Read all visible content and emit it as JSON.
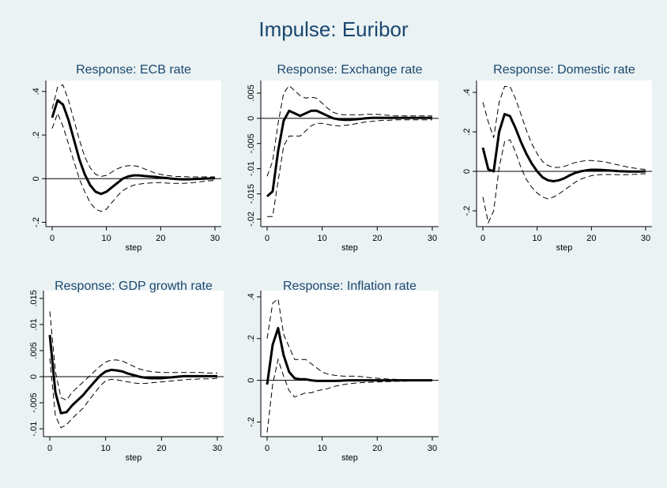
{
  "figure": {
    "title": "Impulse: Euribor"
  },
  "colors": {
    "background": "#eaf2f3",
    "plot_area": "#ffffff",
    "title": "#1a476f",
    "line": "#000000"
  },
  "chart_data": [
    {
      "type": "line",
      "title": "Response: ECB rate",
      "xlabel": "step",
      "xlim": [
        0,
        30
      ],
      "ylim": [
        -0.22,
        0.45
      ],
      "xticks": [
        "0",
        "10",
        "20",
        "30"
      ],
      "yticks": [
        "-.2",
        "0",
        ".2",
        ".4"
      ],
      "zero_line": true,
      "x": [
        0,
        1,
        2,
        3,
        4,
        5,
        6,
        7,
        8,
        9,
        10,
        11,
        12,
        13,
        14,
        15,
        16,
        17,
        18,
        19,
        20,
        21,
        22,
        23,
        24,
        25,
        26,
        27,
        28,
        29,
        30
      ],
      "series": [
        {
          "role": "irf",
          "style": "solid",
          "values": [
            0.28,
            0.36,
            0.34,
            0.27,
            0.18,
            0.09,
            0.02,
            -0.03,
            -0.06,
            -0.07,
            -0.06,
            -0.04,
            -0.02,
            0.0,
            0.01,
            0.015,
            0.015,
            0.012,
            0.01,
            0.008,
            0.005,
            0.003,
            0.0,
            -0.002,
            -0.003,
            -0.003,
            -0.002,
            -0.001,
            0.0,
            0.001,
            0.002
          ]
        },
        {
          "role": "upper",
          "style": "dashed",
          "values": [
            0.32,
            0.42,
            0.43,
            0.36,
            0.27,
            0.18,
            0.1,
            0.05,
            0.02,
            0.01,
            0.015,
            0.03,
            0.045,
            0.055,
            0.06,
            0.06,
            0.055,
            0.045,
            0.035,
            0.025,
            0.02,
            0.015,
            0.012,
            0.01,
            0.01,
            0.008,
            0.008,
            0.008,
            0.008,
            0.008,
            0.008
          ]
        },
        {
          "role": "lower",
          "style": "dashed",
          "values": [
            0.23,
            0.3,
            0.24,
            0.16,
            0.08,
            0.0,
            -0.06,
            -0.11,
            -0.14,
            -0.15,
            -0.14,
            -0.11,
            -0.08,
            -0.055,
            -0.04,
            -0.03,
            -0.025,
            -0.022,
            -0.02,
            -0.018,
            -0.018,
            -0.02,
            -0.022,
            -0.022,
            -0.022,
            -0.02,
            -0.018,
            -0.015,
            -0.012,
            -0.01,
            -0.008
          ]
        }
      ]
    },
    {
      "type": "line",
      "title": "Response: Exchange rate",
      "xlabel": "step",
      "xlim": [
        0,
        30
      ],
      "ylim": [
        -0.0215,
        0.0075
      ],
      "xticks": [
        "0",
        "10",
        "20",
        "30"
      ],
      "yticks": [
        "-.02",
        "-.015",
        "-.01",
        "-.005",
        "0",
        ".005"
      ],
      "zero_line": true,
      "x": [
        0,
        1,
        2,
        3,
        4,
        5,
        6,
        7,
        8,
        9,
        10,
        11,
        12,
        13,
        14,
        15,
        16,
        17,
        18,
        19,
        20,
        21,
        22,
        23,
        24,
        25,
        26,
        27,
        28,
        29,
        30
      ],
      "series": [
        {
          "role": "irf",
          "style": "solid",
          "values": [
            -0.0155,
            -0.0145,
            -0.0065,
            -0.0005,
            0.0015,
            0.001,
            0.0005,
            0.001,
            0.0015,
            0.0015,
            0.001,
            0.0005,
            0.0,
            -0.0002,
            -0.0003,
            -0.0003,
            -0.0002,
            -0.0001,
            0.0,
            0.0001,
            0.0001,
            0.0001,
            0.0001,
            0.0001,
            0.0001,
            0.0001,
            0.0001,
            0.0001,
            0.0001,
            0.0001,
            0.0001
          ]
        },
        {
          "role": "upper",
          "style": "dashed",
          "values": [
            -0.0115,
            -0.0085,
            -0.001,
            0.005,
            0.0065,
            0.0055,
            0.0045,
            0.004,
            0.0042,
            0.004,
            0.003,
            0.002,
            0.0012,
            0.0008,
            0.0007,
            0.0007,
            0.0007,
            0.0007,
            0.0008,
            0.0008,
            0.0008,
            0.0007,
            0.0006,
            0.0005,
            0.0005,
            0.0005,
            0.0005,
            0.0005,
            0.0005,
            0.0005,
            0.0005
          ]
        },
        {
          "role": "lower",
          "style": "dashed",
          "values": [
            -0.0195,
            -0.0195,
            -0.0125,
            -0.0055,
            -0.0035,
            -0.0035,
            -0.0035,
            -0.0025,
            -0.0015,
            -0.001,
            -0.001,
            -0.0012,
            -0.0014,
            -0.0015,
            -0.0014,
            -0.0013,
            -0.0011,
            -0.0009,
            -0.0007,
            -0.0006,
            -0.0005,
            -0.0004,
            -0.0004,
            -0.0003,
            -0.0003,
            -0.0003,
            -0.0003,
            -0.0003,
            -0.0003,
            -0.0003,
            -0.0003
          ]
        }
      ]
    },
    {
      "type": "line",
      "title": "Response: Domestic rate",
      "xlabel": "step",
      "xlim": [
        0,
        30
      ],
      "ylim": [
        -0.28,
        0.46
      ],
      "xticks": [
        "0",
        "10",
        "20",
        "30"
      ],
      "yticks": [
        "-.2",
        "0",
        ".2",
        ".4"
      ],
      "zero_line": true,
      "x": [
        0,
        1,
        2,
        3,
        4,
        5,
        6,
        7,
        8,
        9,
        10,
        11,
        12,
        13,
        14,
        15,
        16,
        17,
        18,
        19,
        20,
        21,
        22,
        23,
        24,
        25,
        26,
        27,
        28,
        29,
        30
      ],
      "series": [
        {
          "role": "irf",
          "style": "solid",
          "values": [
            0.12,
            0.01,
            0.0,
            0.2,
            0.29,
            0.28,
            0.22,
            0.15,
            0.09,
            0.04,
            0.0,
            -0.03,
            -0.045,
            -0.05,
            -0.045,
            -0.035,
            -0.02,
            -0.008,
            0.0,
            0.005,
            0.008,
            0.008,
            0.007,
            0.005,
            0.003,
            0.001,
            0.0,
            -0.001,
            -0.001,
            -0.001,
            0.0
          ]
        },
        {
          "role": "upper",
          "style": "dashed",
          "values": [
            0.35,
            0.25,
            0.17,
            0.35,
            0.43,
            0.43,
            0.37,
            0.29,
            0.21,
            0.14,
            0.09,
            0.05,
            0.03,
            0.02,
            0.02,
            0.025,
            0.035,
            0.045,
            0.05,
            0.055,
            0.055,
            0.053,
            0.05,
            0.045,
            0.038,
            0.032,
            0.026,
            0.02,
            0.016,
            0.012,
            0.01
          ]
        },
        {
          "role": "lower",
          "style": "dashed",
          "values": [
            -0.13,
            -0.26,
            -0.2,
            0.02,
            0.15,
            0.16,
            0.1,
            0.02,
            -0.04,
            -0.08,
            -0.11,
            -0.13,
            -0.14,
            -0.13,
            -0.115,
            -0.095,
            -0.075,
            -0.055,
            -0.04,
            -0.03,
            -0.022,
            -0.018,
            -0.016,
            -0.016,
            -0.016,
            -0.017,
            -0.017,
            -0.016,
            -0.015,
            -0.013,
            -0.012
          ]
        }
      ]
    },
    {
      "type": "line",
      "title": "Response: GDP growth rate",
      "xlabel": "step",
      "xlim": [
        0,
        30
      ],
      "ylim": [
        -0.0115,
        0.0165
      ],
      "xticks": [
        "0",
        "10",
        "20",
        "30"
      ],
      "yticks": [
        "-.01",
        "-.005",
        "0",
        ".005",
        ".01",
        ".015"
      ],
      "zero_line": true,
      "x": [
        0,
        1,
        2,
        3,
        4,
        5,
        6,
        7,
        8,
        9,
        10,
        11,
        12,
        13,
        14,
        15,
        16,
        17,
        18,
        19,
        20,
        21,
        22,
        23,
        24,
        25,
        26,
        27,
        28,
        29,
        30
      ],
      "series": [
        {
          "role": "irf",
          "style": "solid",
          "values": [
            0.008,
            -0.003,
            -0.007,
            -0.0068,
            -0.0055,
            -0.0045,
            -0.0035,
            -0.0022,
            -0.001,
            0.0002,
            0.001,
            0.0013,
            0.0012,
            0.001,
            0.0006,
            0.0003,
            0.0,
            -0.0002,
            -0.0003,
            -0.0003,
            -0.0003,
            -0.0002,
            -0.0001,
            0.0,
            0.0001,
            0.0001,
            0.0001,
            0.0001,
            0.0001,
            0.0001,
            0.0001
          ]
        },
        {
          "role": "upper",
          "style": "dashed",
          "values": [
            0.0125,
            0.001,
            -0.004,
            -0.0045,
            -0.003,
            -0.002,
            -0.001,
            0.0,
            0.001,
            0.002,
            0.0028,
            0.0032,
            0.0032,
            0.003,
            0.0025,
            0.002,
            0.0015,
            0.0012,
            0.001,
            0.0009,
            0.0008,
            0.0008,
            0.0008,
            0.0008,
            0.0008,
            0.0008,
            0.0008,
            0.0008,
            0.0007,
            0.0007,
            0.0007
          ]
        },
        {
          "role": "lower",
          "style": "dashed",
          "values": [
            0.0035,
            -0.0075,
            -0.0098,
            -0.0092,
            -0.008,
            -0.007,
            -0.006,
            -0.0045,
            -0.0032,
            -0.0018,
            -0.0008,
            -0.0005,
            -0.0006,
            -0.0008,
            -0.001,
            -0.0012,
            -0.0013,
            -0.0013,
            -0.0012,
            -0.0011,
            -0.001,
            -0.0009,
            -0.0008,
            -0.0007,
            -0.0006,
            -0.0005,
            -0.0005,
            -0.0004,
            -0.0004,
            -0.0004,
            -0.0003
          ]
        }
      ]
    },
    {
      "type": "line",
      "title": "Response: Inflation rate",
      "xlabel": "step",
      "xlim": [
        0,
        30
      ],
      "ylim": [
        -0.27,
        0.43
      ],
      "xticks": [
        "0",
        "10",
        "20",
        "30"
      ],
      "yticks": [
        "-.2",
        "0",
        ".2",
        ".4"
      ],
      "zero_line": true,
      "x": [
        0,
        1,
        2,
        3,
        4,
        5,
        6,
        7,
        8,
        9,
        10,
        11,
        12,
        13,
        14,
        15,
        16,
        17,
        18,
        19,
        20,
        21,
        22,
        23,
        24,
        25,
        26,
        27,
        28,
        29,
        30
      ],
      "series": [
        {
          "role": "irf",
          "style": "solid",
          "values": [
            -0.02,
            0.17,
            0.25,
            0.12,
            0.04,
            0.01,
            0.005,
            0.005,
            0.0,
            -0.003,
            -0.003,
            -0.003,
            -0.003,
            -0.002,
            -0.001,
            0.0,
            0.0,
            0.0,
            0.0,
            0.0,
            0.0,
            0.0,
            0.0,
            0.0,
            0.0,
            0.0,
            0.0,
            0.0,
            0.0,
            0.0,
            0.0
          ]
        },
        {
          "role": "upper",
          "style": "dashed",
          "values": [
            0.2,
            0.37,
            0.39,
            0.22,
            0.16,
            0.1,
            0.1,
            0.1,
            0.08,
            0.06,
            0.04,
            0.03,
            0.025,
            0.022,
            0.02,
            0.02,
            0.02,
            0.018,
            0.015,
            0.012,
            0.01,
            0.008,
            0.006,
            0.005,
            0.004,
            0.003,
            0.003,
            0.002,
            0.002,
            0.002,
            0.002
          ]
        },
        {
          "role": "lower",
          "style": "dashed",
          "values": [
            -0.25,
            -0.02,
            0.1,
            0.02,
            -0.05,
            -0.08,
            -0.07,
            -0.06,
            -0.06,
            -0.05,
            -0.045,
            -0.04,
            -0.03,
            -0.025,
            -0.02,
            -0.016,
            -0.013,
            -0.011,
            -0.01,
            -0.009,
            -0.008,
            -0.007,
            -0.006,
            -0.005,
            -0.004,
            -0.004,
            -0.003,
            -0.003,
            -0.003,
            -0.002,
            -0.002
          ]
        }
      ]
    }
  ]
}
